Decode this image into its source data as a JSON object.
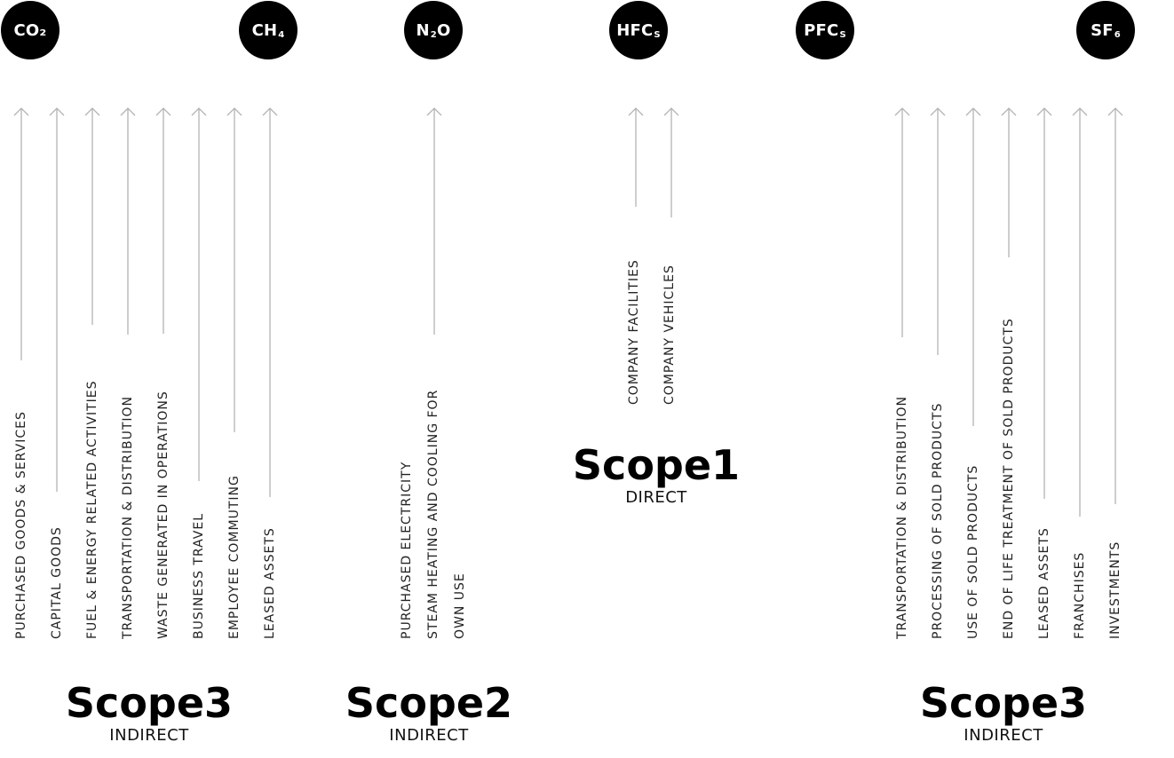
{
  "gases": [
    {
      "main": "CO₂",
      "sub": ""
    },
    {
      "main": "CH",
      "sub": "4"
    },
    {
      "main": "N",
      "sub": "2",
      "after": "O"
    },
    {
      "main": "HFC",
      "sub": "S"
    },
    {
      "main": "PFC",
      "sub": "S"
    },
    {
      "main": "SF",
      "sub": "6"
    }
  ],
  "scope3_upstream": {
    "title": "Scope3",
    "subtitle": "INDIRECT",
    "items": [
      "PURCHASED GOODS & SERVICES",
      "CAPITAL GOODS",
      "FUEL & ENERGY RELATED ACTIVITIES",
      "TRANSPORTATION & DISTRIBUTION",
      "WASTE GENERATED IN OPERATIONS",
      "BUSINESS TRAVEL",
      "EMPLOYEE COMMUTING",
      "LEASED ASSETS"
    ]
  },
  "scope2": {
    "title": "Scope2",
    "subtitle": "INDIRECT",
    "items": [
      "PURCHASED ELECTRICITY",
      "STEAM HEATING AND COOLING FOR",
      "OWN USE"
    ]
  },
  "scope1": {
    "title": "Scope1",
    "subtitle": "DIRECT",
    "items": [
      "COMPANY  FACILITIES",
      "COMPANY VEHICLES"
    ]
  },
  "scope3_downstream": {
    "title": "Scope3",
    "subtitle": "INDIRECT",
    "items": [
      "TRANSPORTATION & DISTRIBUTION",
      "PROCESSING OF SOLD PRODUCTS",
      "USE OF SOLD PRODUCTS",
      "END OF LIFE TREATMENT OF SOLD PRODUCTS",
      "LEASED ASSETS",
      "FRANCHISES",
      "INVESTMENTS"
    ]
  }
}
